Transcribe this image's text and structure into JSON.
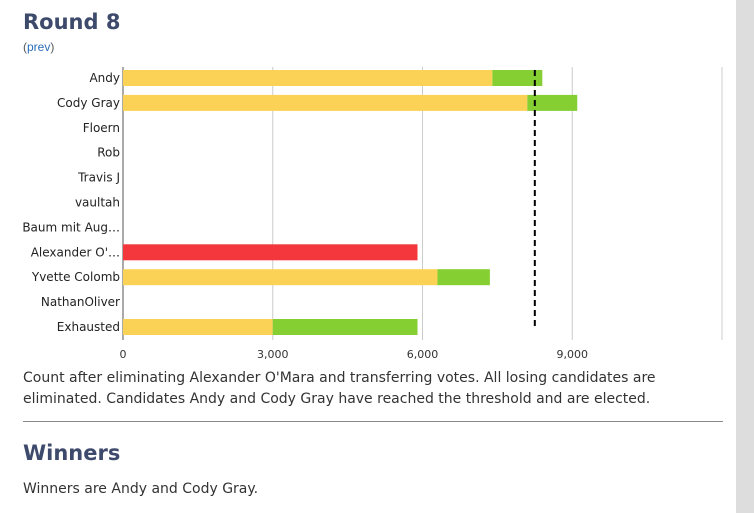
{
  "round": {
    "title": "Round 8",
    "prev_open": "(",
    "prev_label": "prev",
    "prev_close": ")"
  },
  "description": "Count after eliminating Alexander O'Mara and transferring votes. All losing candidates are eliminated. Candidates Andy and Cody Gray have reached the threshold and are elected.",
  "winners": {
    "title": "Winners",
    "text": "Winners are Andy and Cody Gray."
  },
  "colors": {
    "previous": "#fcd256",
    "transferred": "#85cf33",
    "eliminated": "#f3373c",
    "threshold": "#000000",
    "grid": "#cccccc"
  },
  "chart_data": {
    "type": "bar",
    "orientation": "horizontal",
    "stacked": true,
    "categories": [
      "Andy",
      "Cody Gray",
      "Floern",
      "Rob",
      "Travis J",
      "vaultah",
      "Baum mit Aug…",
      "Alexander O'…",
      "Yvette Colomb",
      "NathanOliver",
      "Exhausted"
    ],
    "series": [
      {
        "values": [
          7400,
          8100,
          0,
          0,
          0,
          0,
          0,
          0,
          6300,
          0,
          3000
        ]
      },
      {
        "values": [
          1000,
          1000,
          0,
          0,
          0,
          0,
          0,
          0,
          1050,
          0,
          2900
        ]
      }
    ],
    "eliminated": [
      {
        "category": "Alexander O'…",
        "value": 5900
      }
    ],
    "threshold": 8250,
    "xlim": [
      0,
      12000
    ],
    "xticks": [
      0,
      3000,
      6000,
      9000
    ],
    "xtick_labels": [
      "0",
      "3,000",
      "6,000",
      "9,000"
    ],
    "grid": true
  }
}
